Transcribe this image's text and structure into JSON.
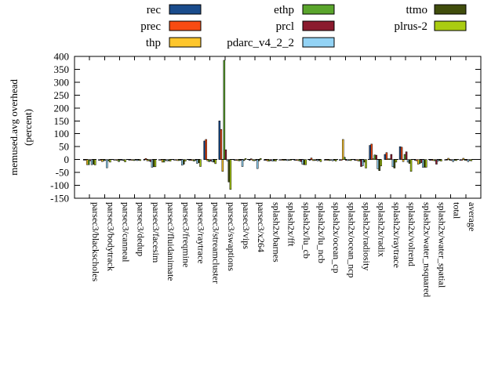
{
  "legend": [
    {
      "label": "rec",
      "color": "#1a4c8c",
      "col": 0,
      "row": 0
    },
    {
      "label": "prec",
      "color": "#f84b12",
      "col": 0,
      "row": 1
    },
    {
      "label": "thp",
      "color": "#fec62c",
      "col": 0,
      "row": 2
    },
    {
      "label": "ethp",
      "color": "#5aa52c",
      "col": 1,
      "row": 0
    },
    {
      "label": "prcl",
      "color": "#8b1a2e",
      "col": 1,
      "row": 1
    },
    {
      "label": "pdarc_v4_2_2",
      "color": "#93d3f5",
      "col": 1,
      "row": 2
    },
    {
      "label": "ttmo",
      "color": "#404d0c",
      "col": 2,
      "row": 0
    },
    {
      "label": "plrus-2",
      "color": "#aacc11",
      "col": 2,
      "row": 1
    }
  ],
  "chart_data": {
    "type": "bar",
    "ylabel_line1": "memused.avg overhead",
    "ylabel_line2": "(percent)",
    "ylim": [
      -150,
      400
    ],
    "ytick_step": 50,
    "grid": false,
    "zero_line": "dashed",
    "legend_position": "top",
    "categories": [
      "parsec3/blackscholes",
      "parsec3/bodytrack",
      "parsec3/canneal",
      "parsec3/dedup",
      "parsec3/facesim",
      "parsec3/fluidanimate",
      "parsec3/freqmine",
      "parsec3/raytrace",
      "parsec3/streamcluster",
      "parsec3/swaptions",
      "parsec3/vips",
      "parsec3/x264",
      "splash2x/barnes",
      "splash2x/fft",
      "splash2x/lu_cb",
      "splash2x/lu_ncb",
      "splash2x/ocean_cp",
      "splash2x/ocean_ncp",
      "splash2x/radiosity",
      "splash2x/radix",
      "splash2x/raytrace",
      "splash2x/volrend",
      "splash2x/water_nsquared",
      "splash2x/water_spatial",
      "total",
      "average"
    ],
    "series": [
      {
        "name": "rec",
        "color": "#1a4c8c",
        "values": [
          -2,
          -3,
          -2,
          -2,
          -2,
          -2,
          -2,
          -3,
          72,
          150,
          -3,
          -3,
          -3,
          -2,
          -3,
          -3,
          -2,
          -3,
          -3,
          55,
          20,
          50,
          -3,
          -3,
          -2,
          -3
        ]
      },
      {
        "name": "prec",
        "color": "#f84b12",
        "values": [
          -2,
          -3,
          -2,
          -2,
          4,
          -2,
          -2,
          -3,
          78,
          117,
          -3,
          3,
          -3,
          -2,
          -3,
          6,
          -2,
          -3,
          -3,
          60,
          27,
          48,
          -5,
          -3,
          -2,
          -3
        ]
      },
      {
        "name": "thp",
        "color": "#fec62c",
        "values": [
          -20,
          -8,
          -4,
          -3,
          -5,
          -10,
          -4,
          -4,
          -5,
          -46,
          -4,
          -4,
          -6,
          -3,
          -4,
          -4,
          -3,
          78,
          -5,
          3,
          3,
          -8,
          -18,
          -4,
          5,
          5
        ]
      },
      {
        "name": "ethp",
        "color": "#5aa52c",
        "values": [
          -20,
          -5,
          -8,
          -4,
          -5,
          -10,
          -4,
          -6,
          -8,
          385,
          -5,
          -5,
          -6,
          -3,
          -5,
          -4,
          -4,
          9,
          -6,
          18,
          3,
          20,
          -15,
          -5,
          -3,
          -3
        ]
      },
      {
        "name": "prcl",
        "color": "#8b1a2e",
        "values": [
          -5,
          -3,
          -2,
          -2,
          -8,
          -3,
          -3,
          -3,
          -6,
          38,
          -3,
          -3,
          -4,
          -2,
          -8,
          -3,
          -2,
          -3,
          -27,
          17,
          20,
          30,
          -12,
          -18,
          -3,
          -3
        ]
      },
      {
        "name": "pdarc_v4_2_2",
        "color": "#93d3f5",
        "values": [
          -20,
          -32,
          -3,
          -4,
          -30,
          -5,
          -22,
          -15,
          -8,
          -5,
          -27,
          -35,
          -6,
          -4,
          -18,
          -5,
          -5,
          -4,
          -24,
          -36,
          -28,
          -10,
          -30,
          -6,
          -8,
          -8
        ]
      },
      {
        "name": "ttmo",
        "color": "#404d0c",
        "values": [
          -18,
          -5,
          -4,
          -3,
          -28,
          -5,
          -18,
          -12,
          -10,
          -87,
          -4,
          -5,
          -5,
          -3,
          -20,
          -4,
          -3,
          -3,
          -10,
          -43,
          -33,
          -15,
          -30,
          -4,
          -3,
          -4
        ]
      },
      {
        "name": "plrus-2",
        "color": "#aacc11",
        "values": [
          -21,
          -10,
          -9,
          -4,
          -28,
          -6,
          -6,
          -27,
          -16,
          -116,
          4,
          4,
          -6,
          -3,
          -20,
          -8,
          -6,
          -4,
          -33,
          -25,
          -10,
          -46,
          -30,
          -6,
          -4,
          -5
        ]
      }
    ]
  }
}
